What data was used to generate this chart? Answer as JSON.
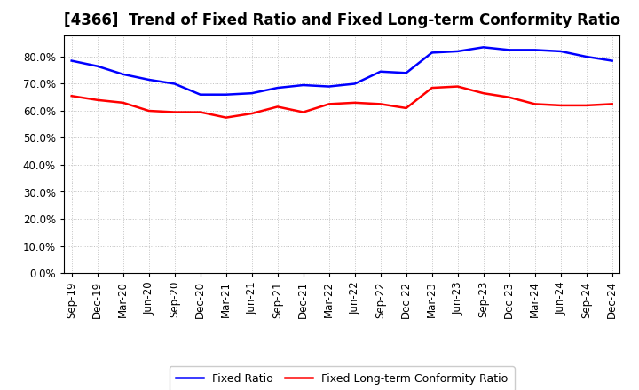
{
  "title": "[4366]  Trend of Fixed Ratio and Fixed Long-term Conformity Ratio",
  "x_labels": [
    "Sep-19",
    "Dec-19",
    "Mar-20",
    "Jun-20",
    "Sep-20",
    "Dec-20",
    "Mar-21",
    "Jun-21",
    "Sep-21",
    "Dec-21",
    "Mar-22",
    "Jun-22",
    "Sep-22",
    "Dec-22",
    "Mar-23",
    "Jun-23",
    "Sep-23",
    "Dec-23",
    "Mar-24",
    "Jun-24",
    "Sep-24",
    "Dec-24"
  ],
  "fixed_ratio": [
    78.5,
    76.5,
    73.5,
    71.5,
    70.0,
    66.0,
    66.0,
    66.5,
    68.5,
    69.5,
    69.0,
    70.0,
    74.5,
    74.0,
    81.5,
    82.0,
    83.5,
    82.5,
    82.5,
    82.0,
    80.0,
    78.5
  ],
  "fixed_lt_ratio": [
    65.5,
    64.0,
    63.0,
    60.0,
    59.5,
    59.5,
    57.5,
    59.0,
    61.5,
    59.5,
    62.5,
    63.0,
    62.5,
    61.0,
    68.5,
    69.0,
    66.5,
    65.0,
    62.5,
    62.0,
    62.0,
    62.5
  ],
  "fixed_ratio_color": "#0000FF",
  "fixed_lt_ratio_color": "#FF0000",
  "ylim": [
    0,
    88
  ],
  "yticks": [
    0,
    10,
    20,
    30,
    40,
    50,
    60,
    70,
    80
  ],
  "background_color": "#FFFFFF",
  "plot_bg_color": "#FFFFFF",
  "grid_color": "#BBBBBB",
  "legend_fixed_ratio": "Fixed Ratio",
  "legend_fixed_lt_ratio": "Fixed Long-term Conformity Ratio",
  "title_fontsize": 12,
  "tick_fontsize": 8.5,
  "legend_fontsize": 9,
  "line_width": 1.8
}
